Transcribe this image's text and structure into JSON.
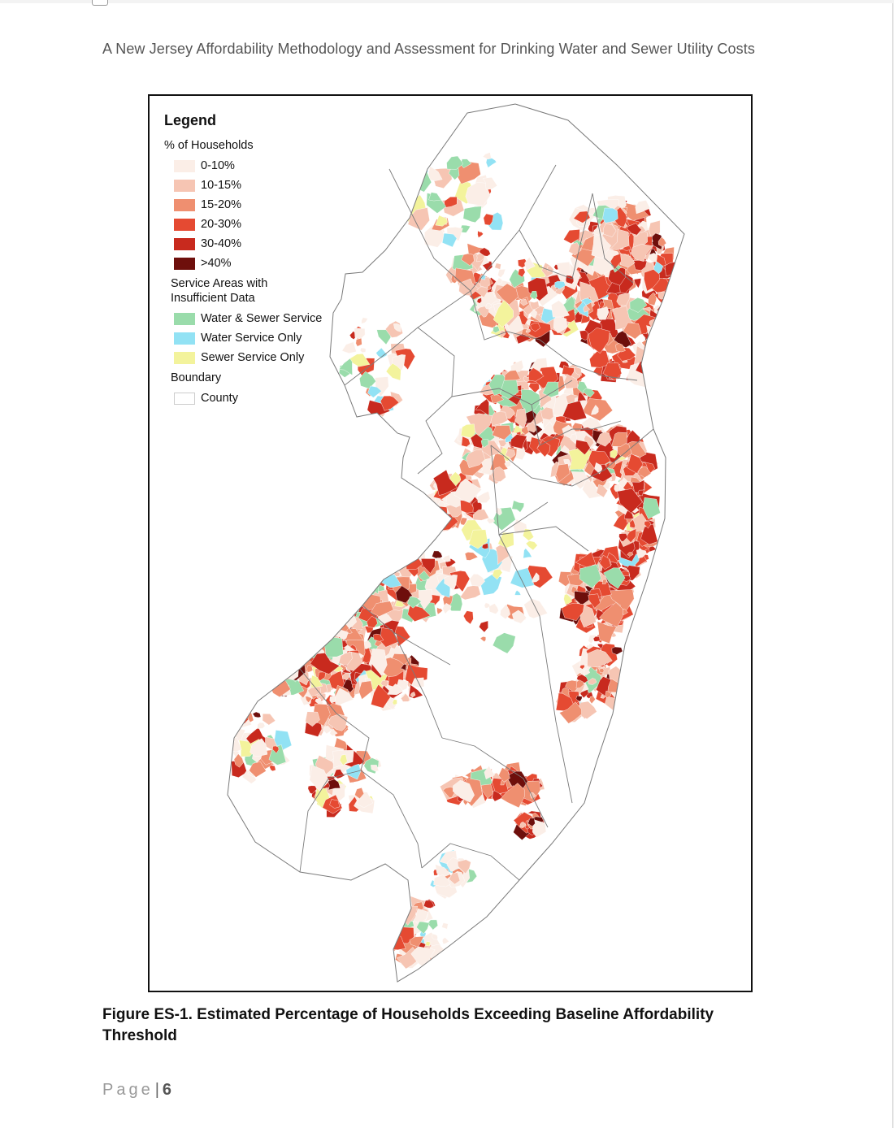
{
  "header": {
    "title": "A New Jersey Affordability Methodology and Assessment for Drinking Water and Sewer Utility Costs"
  },
  "legend": {
    "title": "Legend",
    "pct_heading": "% of Households",
    "pct_classes": [
      {
        "label": "0-10%",
        "color": "#fbeee7"
      },
      {
        "label": "10-15%",
        "color": "#f6c5b3"
      },
      {
        "label": "15-20%",
        "color": "#ef8f70"
      },
      {
        "label": "20-30%",
        "color": "#e54a32"
      },
      {
        "label": "30-40%",
        "color": "#c82a1e"
      },
      {
        "label": ">40%",
        "color": "#6e0f0c"
      }
    ],
    "insufficient_heading_line1": "Service Areas with",
    "insufficient_heading_line2": "Insufficient Data",
    "insufficient_classes": [
      {
        "label": "Water & Sewer Service",
        "color": "#9adcab"
      },
      {
        "label": "Water Service Only",
        "color": "#92e2f4"
      },
      {
        "label": "Sewer Service Only",
        "color": "#f3f39c"
      }
    ],
    "boundary_heading": "Boundary",
    "boundary_label": "County"
  },
  "caption": {
    "line1": "Figure ES-1. Estimated Percentage of Households Exceeding Baseline Affordability",
    "line2": "Threshold"
  },
  "footer": {
    "page_word": "Page",
    "separator": "|",
    "page_number": "6"
  },
  "colors": {
    "county_boundary": "#7a7a7a",
    "frame": "#111111"
  }
}
